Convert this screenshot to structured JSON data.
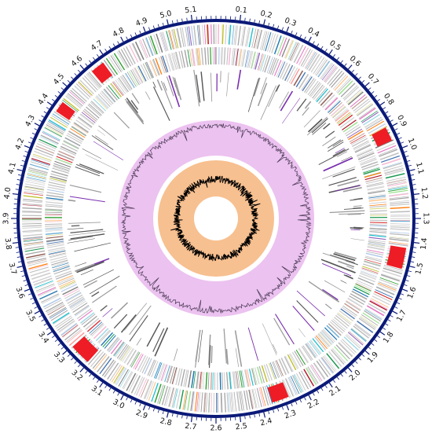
{
  "tick_labels": [
    "0.1",
    "0.2",
    "0.3",
    "0.4",
    "0.5",
    "0.6",
    "0.7",
    "0.8",
    "0.9",
    "1.0",
    "1.1",
    "1.2",
    "1.3",
    "1.4",
    "1.5",
    "1.6",
    "1.7",
    "1.8",
    "1.9",
    "2.0",
    "2.1",
    "2.2",
    "2.3",
    "2.4",
    "2.5",
    "2.6",
    "2.7",
    "2.8",
    "2.9",
    "3.0",
    "3.1",
    "3.2",
    "3.3",
    "3.4",
    "3.5",
    "3.6",
    "3.7",
    "3.8",
    "3.9",
    "4.0",
    "4.1",
    "4.2",
    "4.3",
    "4.4",
    "4.5",
    "4.6",
    "4.7",
    "4.8",
    "4.9",
    "5.0",
    "5.1"
  ],
  "genome_length_mb": 5.2,
  "colors": {
    "backbone": "#0b1a78",
    "gc_skew_band": "#ecc2f0",
    "gc_skew_line": "#4a3a55",
    "gc_content_band": "#f7c090",
    "gc_content_line": "#000000",
    "rrna_tick": "#7a2fb0",
    "feature_palette": [
      "#1f77b4",
      "#2ca02c",
      "#17becf",
      "#d62728",
      "#ff7f0e",
      "#9467bd",
      "#8c564b",
      "#e377c2",
      "#bcbd22",
      "#6baed6",
      "#98df8a",
      "#ff9896",
      "#7f7f7f",
      "#c7c7c7",
      "#aec7e8",
      "#ffbb78",
      "#c49c94",
      "#f7b6d2",
      "#dbdb8d",
      "#9edae5",
      "#1a9850",
      "#4575b4",
      "#b2182b",
      "#a6a6a6",
      "#cfcfcf",
      "#bdbdbd"
    ]
  }
}
